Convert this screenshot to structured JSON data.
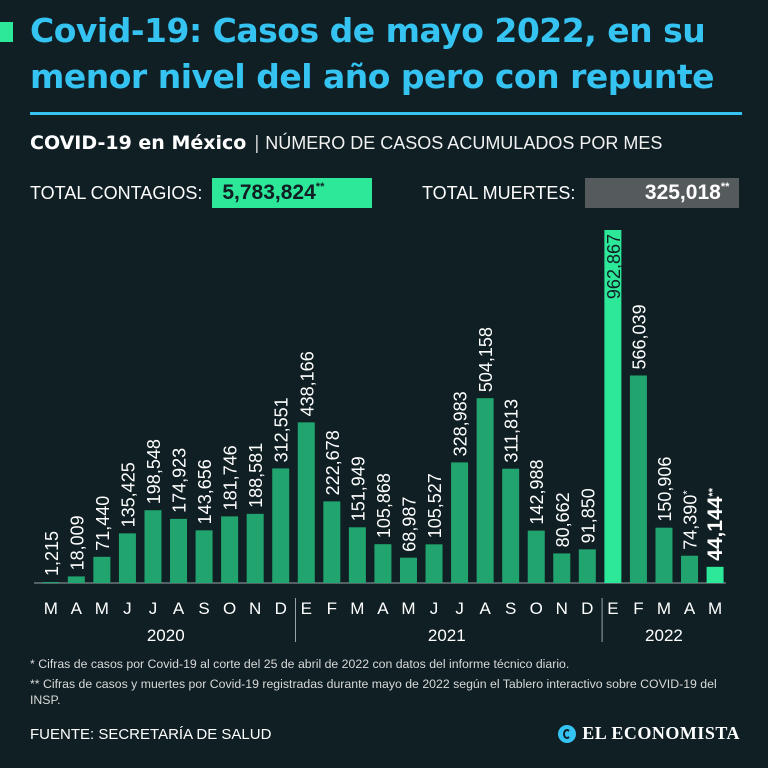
{
  "header": {
    "title": "Covid-19: Casos de mayo 2022, en su menor nivel del año pero con repunte",
    "subtitle_strong": "COVID-19 en México",
    "subtitle_separator": "|",
    "subtitle_rest": "NÚMERO DE CASOS ACUMULADOS POR MES"
  },
  "totals": {
    "contagios_label": "TOTAL CONTAGIOS:",
    "contagios_value": "5,783,824",
    "contagios_mark": "**",
    "muertes_label": "TOTAL MUERTES:",
    "muertes_value": "325,018",
    "muertes_mark": "**"
  },
  "colors": {
    "background": "#0f1f24",
    "title": "#35c3f2",
    "bar": "#21a46e",
    "bar_highlight": "#2ee89a",
    "text": "#ffffff"
  },
  "chart_data": {
    "type": "bar",
    "title": "NÚMERO DE CASOS ACUMULADOS POR MES",
    "xlabel": "",
    "ylabel": "",
    "ylim": [
      0,
      962867
    ],
    "grid": false,
    "categories": [
      "M",
      "A",
      "M",
      "J",
      "J",
      "A",
      "S",
      "O",
      "N",
      "D",
      "E",
      "F",
      "M",
      "A",
      "M",
      "J",
      "J",
      "A",
      "S",
      "O",
      "N",
      "D",
      "E",
      "F",
      "M",
      "A",
      "M"
    ],
    "values": [
      1215,
      18009,
      71440,
      135425,
      198548,
      174923,
      143656,
      181746,
      188581,
      312551,
      438166,
      222678,
      151949,
      105868,
      68987,
      105527,
      328983,
      504158,
      311813,
      142988,
      80662,
      91850,
      962867,
      566039,
      150906,
      74390,
      44144
    ],
    "labels": [
      "1,215",
      "18,009",
      "71,440",
      "135,425",
      "198,548",
      "174,923",
      "143,656",
      "181,746",
      "188,581",
      "312,551",
      "438,166",
      "222,678",
      "151,949",
      "105,868",
      "68,987",
      "105,527",
      "328,983",
      "504,158",
      "311,813",
      "142,988",
      "80,662",
      "91,850",
      "962,867",
      "566,039",
      "150,906",
      "74,390",
      "44,144"
    ],
    "label_marks": [
      "",
      "",
      "",
      "",
      "",
      "",
      "",
      "",
      "",
      "",
      "",
      "",
      "",
      "",
      "",
      "",
      "",
      "",
      "",
      "",
      "",
      "",
      "",
      "",
      "",
      "*",
      "**"
    ],
    "highlight_index": [
      22,
      26
    ],
    "years": [
      {
        "label": "2020",
        "start": 0,
        "end": 9
      },
      {
        "label": "2021",
        "start": 10,
        "end": 21
      },
      {
        "label": "2022",
        "start": 22,
        "end": 26
      }
    ]
  },
  "footnotes": {
    "note1": "* Cifras de casos por Covid-19 al corte del 25 de abril de 2022 con datos del informe técnico diario.",
    "note2": "** Cifras de casos y muertes por Covid-19 registradas durante mayo de 2022 según el Tablero interactivo sobre COVID-19 del INSP."
  },
  "footer": {
    "source": "FUENTE: SECRETARÍA DE SALUD",
    "brand": "EL ECONOMISTA"
  }
}
